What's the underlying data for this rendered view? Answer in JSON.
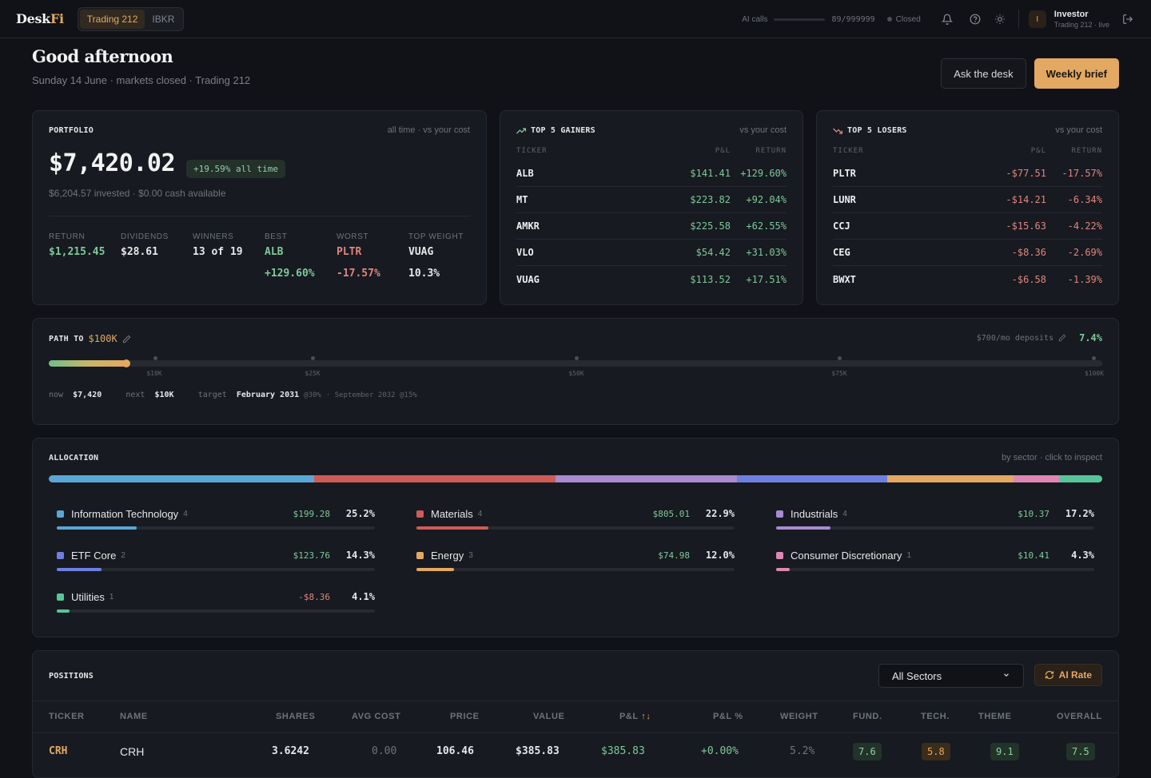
{
  "app": {
    "logo_main": "Desk",
    "logo_accent": "Fi"
  },
  "brokers": [
    {
      "label": "Trading 212",
      "active": true
    },
    {
      "label": "IBKR",
      "active": false
    }
  ],
  "topbar": {
    "ai_calls_label": "AI calls",
    "ai_calls_value": "89/999999",
    "market_status": "Closed",
    "user_initial": "I",
    "user_name": "Investor",
    "user_sub": "Trading 212 · live"
  },
  "header": {
    "greeting": "Good afternoon",
    "subline": "Sunday 14 June · markets closed · Trading 212",
    "ask_label": "Ask the desk",
    "brief_label": "Weekly brief"
  },
  "portfolio": {
    "title": "PORTFOLIO",
    "meta": "all time · vs your cost",
    "total": "$7,420.02",
    "badge": "+19.59% all time",
    "sub": "$6,204.57 invested · $0.00 cash available",
    "stats": [
      {
        "label": "RETURN",
        "value": "$1,215.45",
        "value2": ""
      },
      {
        "label": "DIVIDENDS",
        "value": "$28.61",
        "value2": ""
      },
      {
        "label": "WINNERS",
        "value": "13 of 19",
        "value2": ""
      },
      {
        "label": "BEST",
        "value": "ALB",
        "value2": "+129.60%"
      },
      {
        "label": "WORST",
        "value": "PLTR",
        "value2": "-17.57%"
      },
      {
        "label": "TOP WEIGHT",
        "value": "VUAG",
        "value2": "10.3%"
      }
    ]
  },
  "gainers": {
    "title": "TOP 5 GAINERS",
    "meta": "vs your cost",
    "col_ticker": "TICKER",
    "col_pl": "P&L",
    "col_return": "RETURN",
    "rows": [
      {
        "ticker": "ALB",
        "pl": "$141.41",
        "ret": "+129.60%"
      },
      {
        "ticker": "MT",
        "pl": "$223.82",
        "ret": "+92.04%"
      },
      {
        "ticker": "AMKR",
        "pl": "$225.58",
        "ret": "+62.55%"
      },
      {
        "ticker": "VLO",
        "pl": "$54.42",
        "ret": "+31.03%"
      },
      {
        "ticker": "VUAG",
        "pl": "$113.52",
        "ret": "+17.51%"
      }
    ]
  },
  "losers": {
    "title": "TOP 5 LOSERS",
    "meta": "vs your cost",
    "col_ticker": "TICKER",
    "col_pl": "P&L",
    "col_return": "RETURN",
    "rows": [
      {
        "ticker": "PLTR",
        "pl": "-$77.51",
        "ret": "-17.57%"
      },
      {
        "ticker": "LUNR",
        "pl": "-$14.21",
        "ret": "-6.34%"
      },
      {
        "ticker": "CCJ",
        "pl": "-$15.63",
        "ret": "-4.22%"
      },
      {
        "ticker": "CEG",
        "pl": "-$8.36",
        "ret": "-2.69%"
      },
      {
        "ticker": "BWXT",
        "pl": "-$6.58",
        "ret": "-1.39%"
      }
    ]
  },
  "path": {
    "title": "PATH TO",
    "target": "$100K",
    "deposits": "$700/mo deposits",
    "progress_pct": "7.4%",
    "progress_value": 0.074,
    "milestones": [
      "$10K",
      "$25K",
      "$50K",
      "$75K",
      "$100K"
    ],
    "now_label": "now",
    "now_value": "$7,420",
    "next_label": "next",
    "next_value": "$10K",
    "target_label": "target",
    "target_date": "February 2031",
    "target_rate": "@30%",
    "alt": "· September 2032 @15%"
  },
  "allocation": {
    "title": "ALLOCATION",
    "meta": "by sector · click to inspect",
    "sectors": [
      {
        "name": "Information Technology",
        "count": "4",
        "pl": "$199.28",
        "pct": "25.2%",
        "weight": 25.2,
        "color": "#5aa6d6"
      },
      {
        "name": "Materials",
        "count": "4",
        "pl": "$805.01",
        "pct": "22.9%",
        "weight": 22.9,
        "color": "#cf5b58"
      },
      {
        "name": "Industrials",
        "count": "4",
        "pl": "$10.37",
        "pct": "17.2%",
        "weight": 17.2,
        "color": "#a88bd0"
      },
      {
        "name": "ETF Core",
        "count": "2",
        "pl": "$123.76",
        "pct": "14.3%",
        "weight": 14.3,
        "color": "#6f7fe0"
      },
      {
        "name": "Energy",
        "count": "3",
        "pl": "$74.98",
        "pct": "12.0%",
        "weight": 12.0,
        "color": "#e3a862"
      },
      {
        "name": "Consumer Discretionary",
        "count": "1",
        "pl": "$10.41",
        "pct": "4.3%",
        "weight": 4.3,
        "color": "#de86b4"
      },
      {
        "name": "Utilities",
        "count": "1",
        "pl": "-$8.36",
        "pct": "4.1%",
        "weight": 4.1,
        "color": "#57c59a"
      }
    ]
  },
  "positions": {
    "title": "POSITIONS",
    "filter": "All Sectors",
    "ai_rate": "AI Rate",
    "headers": [
      "TICKER",
      "NAME",
      "SHARES",
      "AVG COST",
      "PRICE",
      "VALUE",
      "P&L",
      "P&L %",
      "WEIGHT",
      "FUND.",
      "TECH.",
      "THEME",
      "OVERALL"
    ],
    "sort_indicator": "↑↓",
    "row": {
      "ticker": "CRH",
      "name": "CRH",
      "shares": "3.6242",
      "avg_cost": "0.00",
      "price": "106.46",
      "value": "$385.83",
      "pl": "$385.83",
      "pl_pct": "+0.00%",
      "weight": "5.2%",
      "fund": "7.6",
      "tech": "5.8",
      "theme": "9.1",
      "overall": "7.5"
    }
  }
}
